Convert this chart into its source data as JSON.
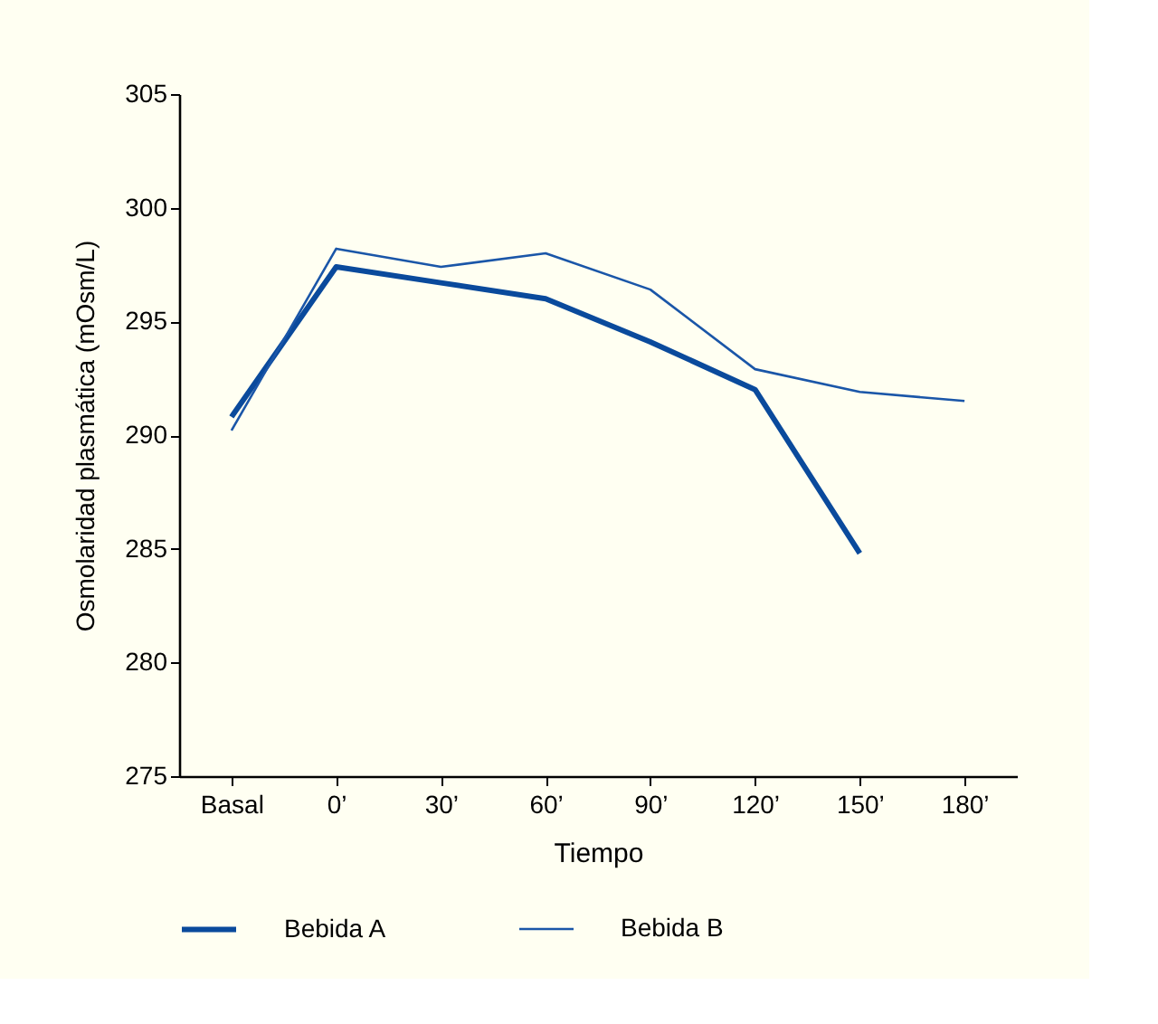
{
  "chart_data": {
    "type": "line",
    "xlabel": "Tiempo",
    "ylabel": "Osmolaridad plasmática (mOsm/L)",
    "categories": [
      "Basal",
      "0’",
      "30’",
      "60’",
      "90’",
      "120’",
      "150’",
      "180’"
    ],
    "series": [
      {
        "name": "Bebida A",
        "color": "#0a4a9c",
        "values": [
          290.8,
          297.4,
          296.7,
          296.0,
          294.1,
          292.0,
          284.8,
          null
        ]
      },
      {
        "name": "Bebida B",
        "color": "#1a56a8",
        "values": [
          290.2,
          298.2,
          297.4,
          298.0,
          296.4,
          292.9,
          291.9,
          291.5
        ]
      }
    ],
    "ylim": [
      275,
      305
    ],
    "yticks": [
      275,
      280,
      285,
      290,
      295,
      300,
      305
    ],
    "grid": false,
    "legend": "bottom",
    "marker": "none",
    "line_style": "solid"
  }
}
